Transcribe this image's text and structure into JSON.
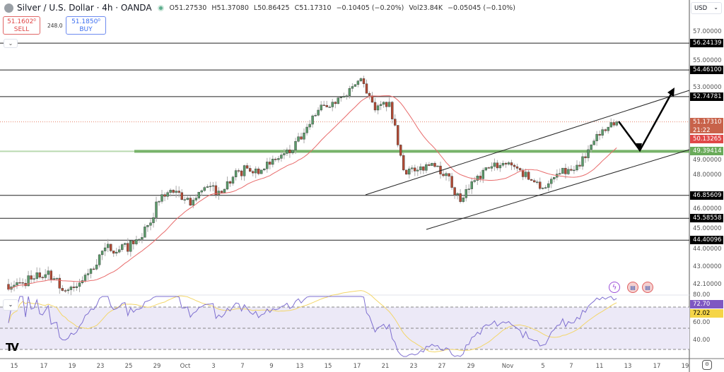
{
  "header": {
    "symbol": "Silver / U.S. Dollar · 4h · OANDA",
    "open": "O51.27530",
    "high": "H51.37080",
    "low": "L50.86425",
    "close": "C51.17310",
    "change": "−0.10405 (−0.20%)",
    "volume": "Vol23.84K",
    "vol_change": "−0.05045 (−0.10%)"
  },
  "trade": {
    "sell_price": "51.1602⁰",
    "sell_label": "SELL",
    "spread": "248.0",
    "buy_price": "51.1850⁰",
    "buy_label": "BUY"
  },
  "currency": "USD",
  "colors": {
    "up": "#5b9a6a",
    "down": "#b24a34",
    "ma": "#e86a6a",
    "support": "#6aab5a",
    "rsi": "#7e6fd0",
    "rsi_ma": "#f3d66a",
    "rsi_band": "#ece9f7"
  },
  "price_axis": {
    "scale": "log",
    "ticks": [
      "57.00000",
      "55.00000",
      "53.00000",
      "49.00000",
      "48.00000",
      "46.00000",
      "45.00000",
      "44.00000",
      "43.00000",
      "42.10000"
    ]
  },
  "price_labels": [
    {
      "value": "56.24139",
      "kind": "level"
    },
    {
      "value": "54.46100",
      "kind": "level"
    },
    {
      "value": "52.74781",
      "kind": "level"
    },
    {
      "value": "51.17310",
      "sub": "21:22",
      "kind": "last"
    },
    {
      "value": "50.13265",
      "kind": "ma"
    },
    {
      "value": "49.39414",
      "kind": "support"
    },
    {
      "value": "46.85609",
      "kind": "level"
    },
    {
      "value": "45.58558",
      "kind": "level"
    },
    {
      "value": "44.40096",
      "kind": "level"
    }
  ],
  "rsi_axis": {
    "ticks": [
      "80.00",
      "60.00",
      "40.00"
    ],
    "rsi_value": "72.70",
    "rsi_ma_value": "72.02"
  },
  "x_axis": {
    "ticks": [
      "15",
      "17",
      "19",
      "23",
      "25",
      "29",
      "Oct",
      "3",
      "7",
      "9",
      "13",
      "15",
      "17",
      "21",
      "23",
      "27",
      "29",
      "Nov",
      "5",
      "7",
      "11",
      "13",
      "17",
      "19"
    ]
  },
  "chart_data": {
    "type": "candlestick",
    "timeframe": "4h",
    "y_scale": "log",
    "ylim": [
      41.6,
      57.5
    ],
    "daily_close_approx": {
      "dates": [
        "Sep 15",
        "Sep 16",
        "Sep 17",
        "Sep 18",
        "Sep 19",
        "Sep 22",
        "Sep 23",
        "Sep 24",
        "Sep 25",
        "Sep 26",
        "Sep 29",
        "Sep 30",
        "Oct 1",
        "Oct 2",
        "Oct 3",
        "Oct 6",
        "Oct 7",
        "Oct 8",
        "Oct 9",
        "Oct 10",
        "Oct 13",
        "Oct 14",
        "Oct 15",
        "Oct 16",
        "Oct 17",
        "Oct 20",
        "Oct 21",
        "Oct 22",
        "Oct 23",
        "Oct 24",
        "Oct 27",
        "Oct 28",
        "Oct 29",
        "Oct 30",
        "Oct 31",
        "Nov 3",
        "Nov 4",
        "Nov 5",
        "Nov 6",
        "Nov 7",
        "Nov 10",
        "Nov 11",
        "Nov 12"
      ],
      "close": [
        42.2,
        42.4,
        42.8,
        41.8,
        42.0,
        42.9,
        44.0,
        43.9,
        44.2,
        45.2,
        46.9,
        47.1,
        46.3,
        47.3,
        47.1,
        47.9,
        48.4,
        48.3,
        48.9,
        49.3,
        50.5,
        51.9,
        52.4,
        52.8,
        53.9,
        51.9,
        52.4,
        48.3,
        48.3,
        48.7,
        48.1,
        46.5,
        47.7,
        48.4,
        48.7,
        48.4,
        47.7,
        47.3,
        48.1,
        48.3,
        49.5,
        50.7,
        51.17
      ]
    },
    "horizontal_levels": [
      56.24139,
      54.461,
      52.74781,
      46.85609,
      45.58558,
      44.40096
    ],
    "support_level": 49.39414,
    "last_price": 51.1731,
    "moving_average_last": 50.13265,
    "rsi_last": 72.7,
    "rsi_ma_last": 72.02,
    "rsi_bands": [
      70,
      50,
      30
    ]
  }
}
